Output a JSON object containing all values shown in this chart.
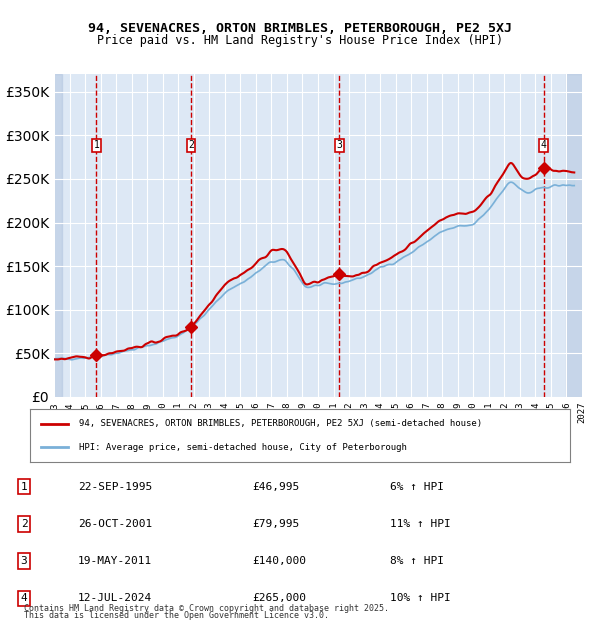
{
  "title1": "94, SEVENACRES, ORTON BRIMBLES, PETERBOROUGH, PE2 5XJ",
  "title2": "Price paid vs. HM Land Registry's House Price Index (HPI)",
  "legend_line1": "94, SEVENACRES, ORTON BRIMBLES, PETERBOROUGH, PE2 5XJ (semi-detached house)",
  "legend_line2": "HPI: Average price, semi-detached house, City of Peterborough",
  "transactions": [
    {
      "num": 1,
      "date": "22-SEP-1995",
      "year": 1995.73,
      "price": 46995,
      "hpi_pct": "6% ↑ HPI"
    },
    {
      "num": 2,
      "date": "26-OCT-2001",
      "year": 2001.82,
      "price": 79995,
      "hpi_pct": "11% ↑ HPI"
    },
    {
      "num": 3,
      "date": "19-MAY-2011",
      "year": 2011.38,
      "price": 140000,
      "hpi_pct": "8% ↑ HPI"
    },
    {
      "num": 4,
      "date": "12-JUL-2024",
      "year": 2024.54,
      "price": 265000,
      "hpi_pct": "10% ↑ HPI"
    }
  ],
  "footer1": "Contains HM Land Registry data © Crown copyright and database right 2025.",
  "footer2": "This data is licensed under the Open Government Licence v3.0.",
  "ylim": [
    0,
    370000
  ],
  "xlim_start": 1993.0,
  "xlim_end": 2027.0,
  "bg_color": "#dde8f5",
  "hatch_color": "#b0c4de",
  "grid_color": "#ffffff",
  "hpi_line_color": "#7ab0d8",
  "price_line_color": "#cc0000",
  "dashed_color": "#cc0000",
  "marker_color": "#cc0000"
}
